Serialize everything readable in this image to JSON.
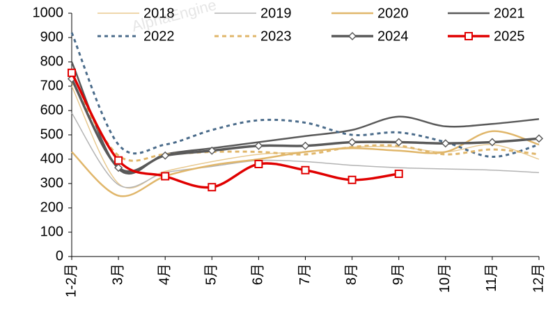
{
  "chart_data": {
    "type": "line",
    "watermark": "AlphaEngine",
    "categories": [
      "1-2月",
      "3月",
      "4月",
      "5月",
      "6月",
      "7月",
      "8月",
      "9月",
      "10月",
      "11月",
      "12月"
    ],
    "ylim": [
      0,
      1000
    ],
    "yticks": [
      0,
      100,
      200,
      300,
      400,
      500,
      600,
      700,
      800,
      900,
      1000
    ],
    "legend": "top",
    "series": [
      {
        "name": "2018",
        "color": "#e8c98f",
        "width": 1.5,
        "dash": "none",
        "marker": "none",
        "values": [
          700,
          300,
          350,
          390,
          420,
          430,
          450,
          450,
          430,
          460,
          400
        ]
      },
      {
        "name": "2019",
        "color": "#b3b3b3",
        "width": 1.5,
        "dash": "none",
        "marker": "none",
        "values": [
          590,
          295,
          345,
          370,
          395,
          390,
          375,
          365,
          360,
          355,
          345
        ]
      },
      {
        "name": "2020",
        "color": "#e0b66a",
        "width": 2.5,
        "dash": "none",
        "marker": "none",
        "values": [
          430,
          250,
          330,
          375,
          400,
          430,
          445,
          435,
          430,
          515,
          460
        ]
      },
      {
        "name": "2021",
        "color": "#595959",
        "width": 2.5,
        "dash": "none",
        "marker": "none",
        "values": [
          800,
          360,
          420,
          445,
          470,
          495,
          520,
          575,
          535,
          545,
          565
        ]
      },
      {
        "name": "2022",
        "color": "#4a6b8a",
        "width": 3,
        "dash": "5 5",
        "marker": "none",
        "values": [
          920,
          460,
          460,
          520,
          560,
          550,
          500,
          510,
          470,
          410,
          460
        ]
      },
      {
        "name": "2023",
        "color": "#e0b66a",
        "width": 3,
        "dash": "6 5",
        "marker": "none",
        "values": [
          720,
          415,
          420,
          430,
          430,
          420,
          450,
          455,
          420,
          440,
          420
        ]
      },
      {
        "name": "2024",
        "color": "#595959",
        "width": 3.5,
        "dash": "none",
        "marker": "diamond",
        "values": [
          730,
          365,
          415,
          435,
          455,
          455,
          470,
          470,
          465,
          470,
          485
        ]
      },
      {
        "name": "2025",
        "color": "#e00000",
        "width": 3.5,
        "dash": "none",
        "marker": "square",
        "values": [
          755,
          395,
          330,
          285,
          380,
          355,
          315,
          340,
          null,
          null,
          null
        ]
      }
    ]
  }
}
